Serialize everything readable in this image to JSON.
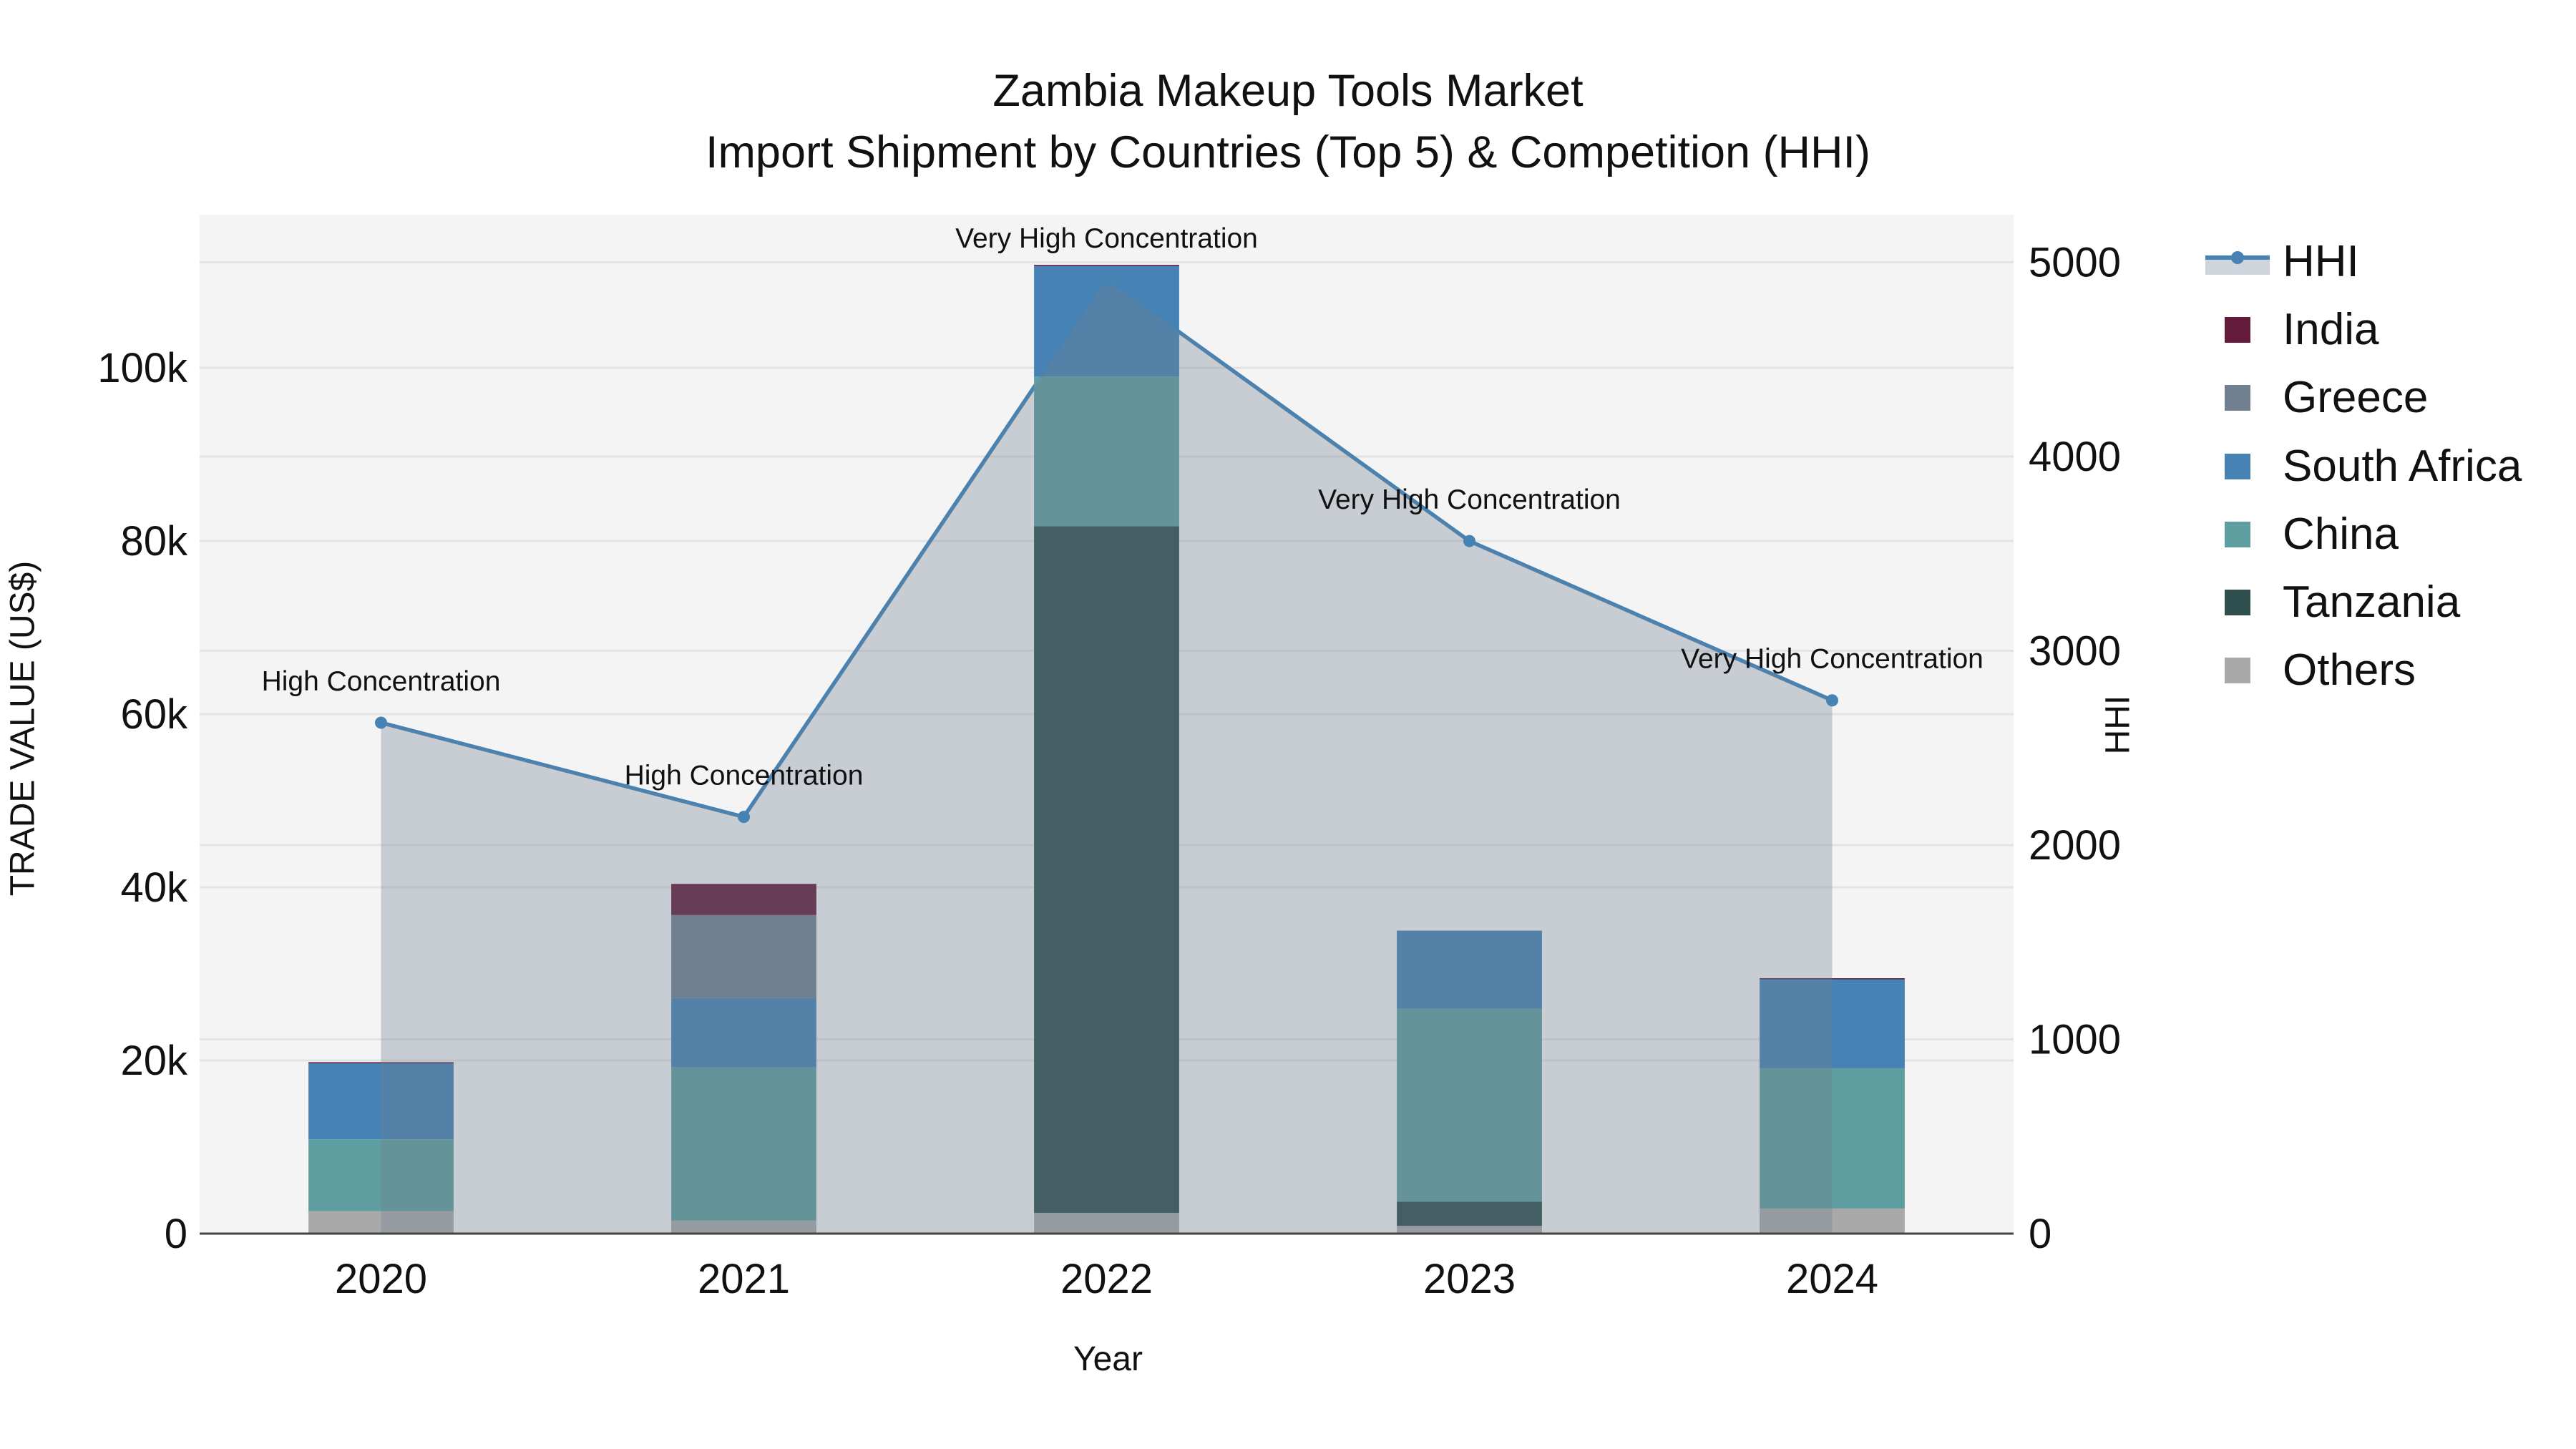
{
  "title": {
    "line1": "Zambia Makeup Tools Market",
    "line2": "Import Shipment by Countries (Top 5) & Competition (HHI)"
  },
  "axes": {
    "x_title": "Year",
    "y_left_title": "TRADE VALUE (US$)",
    "y_right_title": "HHI",
    "y_left_ticks": [
      "0",
      "20k",
      "40k",
      "60k",
      "80k",
      "100k"
    ],
    "y_right_ticks": [
      "0",
      "1000",
      "2000",
      "3000",
      "4000",
      "5000"
    ]
  },
  "legend": {
    "items": [
      {
        "label": "HHI",
        "type": "line",
        "color": "#4682b4"
      },
      {
        "label": "India",
        "type": "bar",
        "color": "#641a3a"
      },
      {
        "label": "Greece",
        "type": "bar",
        "color": "#708090"
      },
      {
        "label": "South Africa",
        "type": "bar",
        "color": "#4682b4"
      },
      {
        "label": "China",
        "type": "bar",
        "color": "#5f9ea0"
      },
      {
        "label": "Tanzania",
        "type": "bar",
        "color": "#2f4f4f"
      },
      {
        "label": "Others",
        "type": "bar",
        "color": "#a9a9a9"
      }
    ]
  },
  "colors": {
    "plot_bg": "#f4f4f4",
    "grid": "#e3e3e3",
    "hhi_line": "#4682b4",
    "hhi_fill": "#708090",
    "axis_line": "#444444"
  },
  "chart_data": {
    "type": "bar",
    "subtype": "stacked bar + line (dual axis)",
    "title": "Zambia Makeup Tools Market — Import Shipment by Countries (Top 5) & Competition (HHI)",
    "xlabel": "Year",
    "ylabel": "TRADE VALUE (US$)",
    "y2label": "HHI",
    "categories": [
      "2020",
      "2021",
      "2022",
      "2023",
      "2024"
    ],
    "ylim": [
      0,
      117700
    ],
    "y2lim": [
      0,
      5245
    ],
    "y_ticks": [
      0,
      20000,
      40000,
      60000,
      80000,
      100000
    ],
    "y2_ticks": [
      0,
      1000,
      2000,
      3000,
      4000,
      5000
    ],
    "grid": true,
    "legend_position": "right",
    "stack_order_bottom_to_top": [
      "Others",
      "Tanzania",
      "China",
      "South Africa",
      "Greece",
      "India"
    ],
    "series": [
      {
        "name": "Others",
        "type": "bar",
        "color": "#a9a9a9",
        "values": [
          2600,
          1500,
          2400,
          900,
          2900
        ]
      },
      {
        "name": "Tanzania",
        "type": "bar",
        "color": "#2f4f4f",
        "values": [
          0,
          0,
          79300,
          2800,
          0
        ]
      },
      {
        "name": "China",
        "type": "bar",
        "color": "#5f9ea0",
        "values": [
          8300,
          17700,
          17300,
          22300,
          16200
        ]
      },
      {
        "name": "South Africa",
        "type": "bar",
        "color": "#4682b4",
        "values": [
          8800,
          8000,
          12800,
          9000,
          10300
        ]
      },
      {
        "name": "Greece",
        "type": "bar",
        "color": "#708090",
        "values": [
          0,
          9600,
          0,
          0,
          0
        ]
      },
      {
        "name": "India",
        "type": "bar",
        "color": "#641a3a",
        "values": [
          100,
          3600,
          100,
          0,
          100
        ]
      },
      {
        "name": "HHI",
        "type": "line",
        "axis": "right",
        "color": "#4682b4",
        "fill": "tozeroy",
        "values": [
          2630,
          2145,
          4910,
          3565,
          2745
        ]
      }
    ],
    "annotations": [
      {
        "category": "2020",
        "text": "High Concentration"
      },
      {
        "category": "2021",
        "text": "High Concentration"
      },
      {
        "category": "2022",
        "text": "Very High Concentration"
      },
      {
        "category": "2023",
        "text": "Very High Concentration"
      },
      {
        "category": "2024",
        "text": "Very High Concentration"
      }
    ]
  }
}
